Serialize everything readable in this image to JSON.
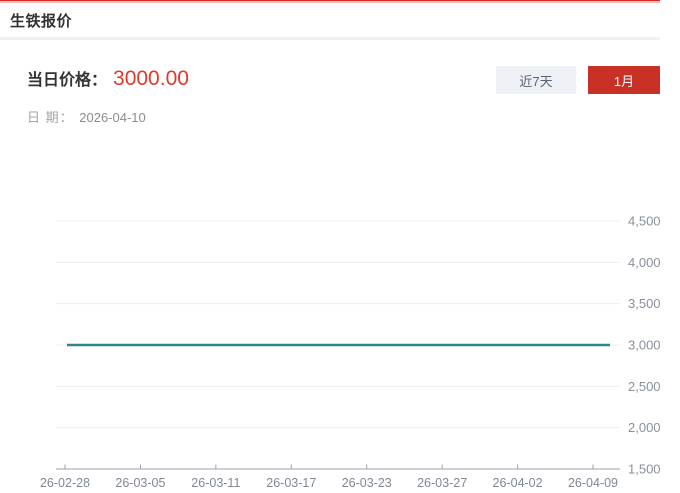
{
  "colors": {
    "accent_red": "#d7261d",
    "accent_red_light": "#f5c1bd",
    "price_red": "#e5372b",
    "button_active_bg": "#c93026",
    "button_inactive_bg": "#edf0f5",
    "line_teal": "#2e8688"
  },
  "header": {
    "title": "生铁报价"
  },
  "price": {
    "label": "当日价格：",
    "value": "3000.00"
  },
  "date": {
    "label": "日 期：",
    "value": "2026-04-10"
  },
  "buttons": {
    "range_7d": "近7天",
    "range_1m": "1月"
  },
  "chart_data": {
    "type": "line",
    "title": "",
    "categories": [
      "26-02-28",
      "26-03-05",
      "26-03-11",
      "26-03-17",
      "26-03-23",
      "26-03-27",
      "26-04-02",
      "26-04-09"
    ],
    "values": [
      3000,
      3000,
      3000,
      3000,
      3000,
      3000,
      3000,
      3000
    ],
    "xlabel": "",
    "ylabel": "",
    "ylim": [
      1500,
      4500
    ],
    "y_tick_values": [
      1500,
      2000,
      2500,
      3000,
      3500,
      4000,
      4500
    ],
    "y_tick_labels": [
      "1,500",
      "2,000",
      "2,500",
      "3,000",
      "3,500",
      "4,000",
      "4,500"
    ],
    "y_axis_position": "right",
    "grid": true,
    "legend_position": "none",
    "line_color": "#2e8688"
  }
}
